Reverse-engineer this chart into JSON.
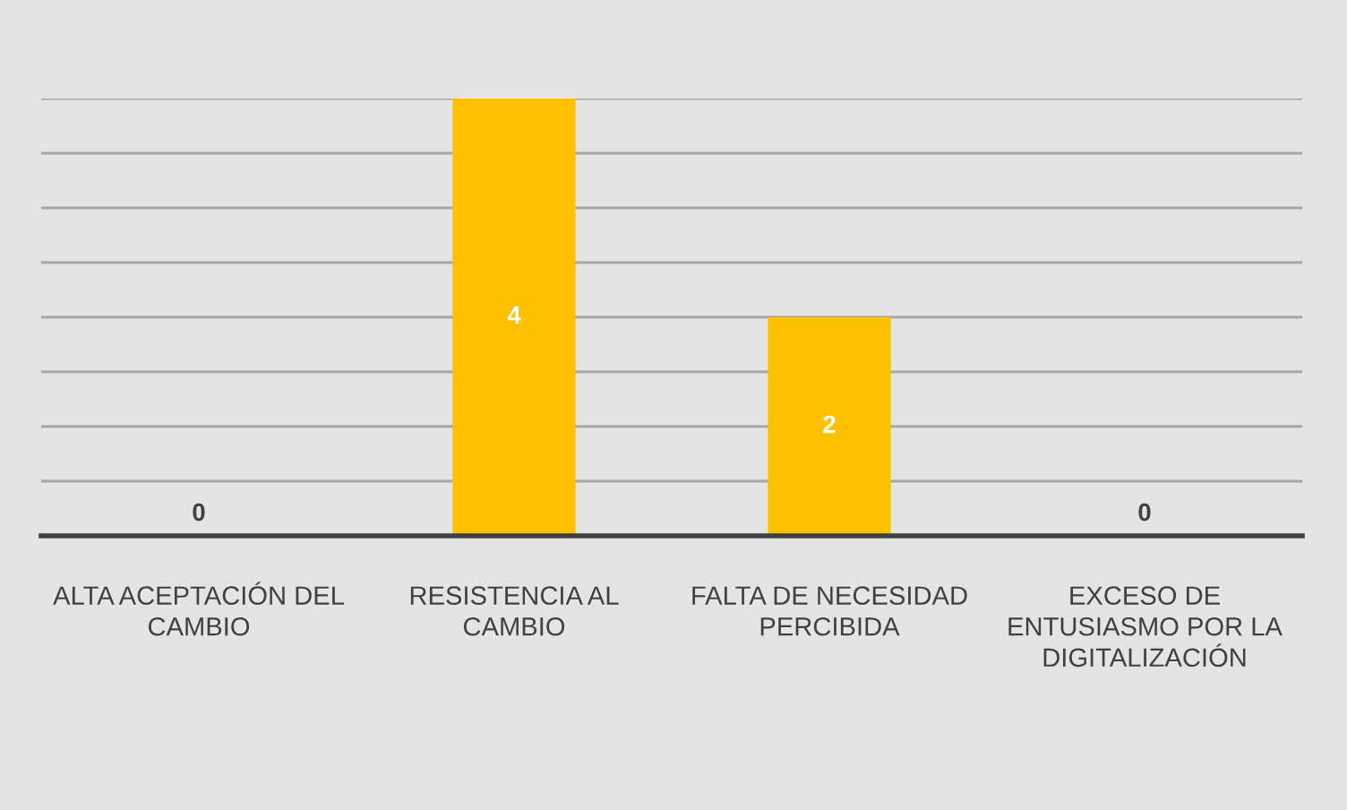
{
  "chart_data": {
    "type": "bar",
    "categories": [
      "ALTA ACEPTACIÓN DEL CAMBIO",
      "RESISTENCIA AL CAMBIO",
      "FALTA DE NECESIDAD PERCIBIDA",
      "EXCESO DE ENTUSIASMO POR LA DIGITALIZACIÓN"
    ],
    "values": [
      0,
      4,
      2,
      0
    ],
    "color": "#ffc000",
    "data_labels": true,
    "ylim": [
      0,
      4
    ],
    "yticks": [
      {
        "value": 0,
        "label": null
      },
      {
        "value": 0.5,
        "label": null
      },
      {
        "value": 1,
        "label": null
      },
      {
        "value": 1.5,
        "label": null
      },
      {
        "value": 2,
        "label": null
      },
      {
        "value": 2.5,
        "label": null
      },
      {
        "value": 3,
        "label": null
      },
      {
        "value": 3.5,
        "label": null
      },
      {
        "value": 4,
        "label": null
      }
    ],
    "tick_labels": "x",
    "grid": "y"
  }
}
